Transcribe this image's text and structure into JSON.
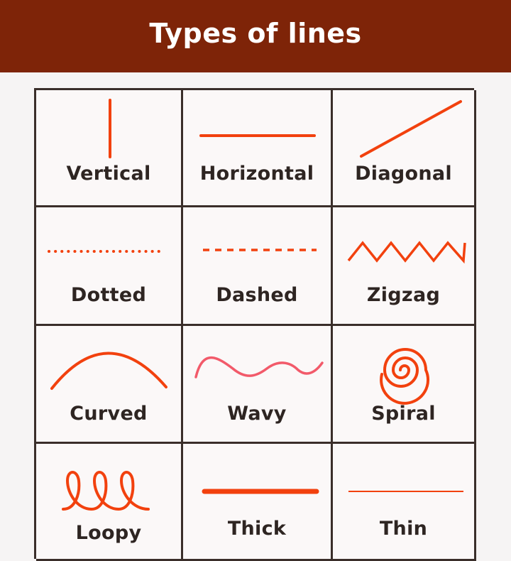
{
  "header": {
    "title": "Types of lines"
  },
  "colors": {
    "banner": "#7e2408",
    "line": "#f2410e",
    "grid": "#3a2e2a",
    "text": "#2e2522"
  },
  "cells": [
    {
      "label": "Vertical"
    },
    {
      "label": "Horizontal"
    },
    {
      "label": "Diagonal"
    },
    {
      "label": "Dotted"
    },
    {
      "label": "Dashed"
    },
    {
      "label": "Zigzag"
    },
    {
      "label": "Curved"
    },
    {
      "label": "Wavy"
    },
    {
      "label": "Spiral"
    },
    {
      "label": "Loopy"
    },
    {
      "label": "Thick"
    },
    {
      "label": "Thin"
    }
  ]
}
